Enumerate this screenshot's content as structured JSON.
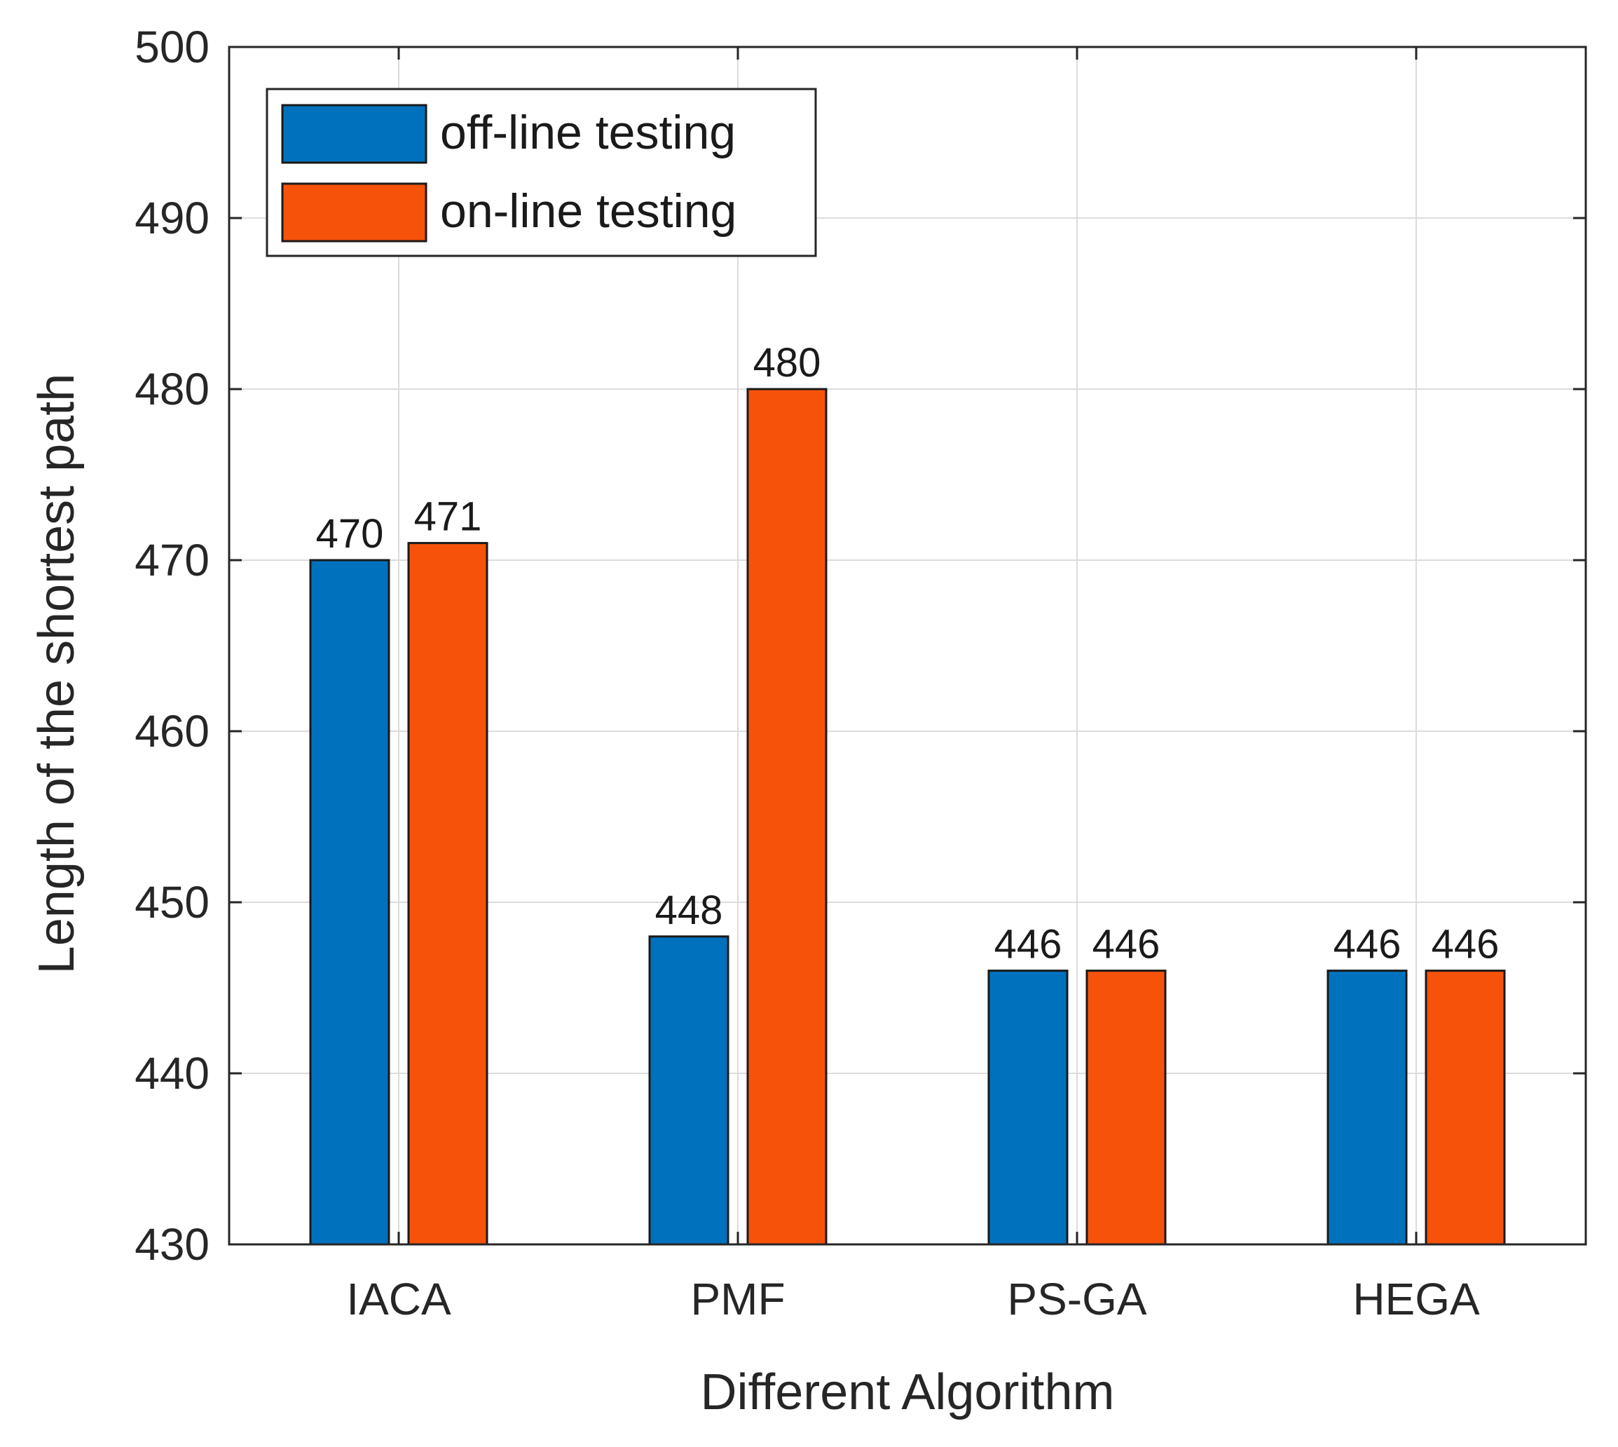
{
  "chart_data": {
    "type": "bar",
    "title": "",
    "xlabel": "Different Algorithm",
    "ylabel": "Length of the shortest path",
    "categories": [
      "IACA",
      "PMF",
      "PS-GA",
      "HEGA"
    ],
    "series": [
      {
        "name": "off-line testing",
        "color": "#0072BD",
        "values": [
          470,
          448,
          446,
          446
        ]
      },
      {
        "name": "on-line testing",
        "color": "#F7520A",
        "values": [
          471,
          480,
          446,
          446
        ]
      }
    ],
    "ylim": [
      430,
      500
    ],
    "yticks": [
      430,
      440,
      450,
      460,
      470,
      480,
      490,
      500
    ],
    "grid": true,
    "legend": "top-left"
  }
}
